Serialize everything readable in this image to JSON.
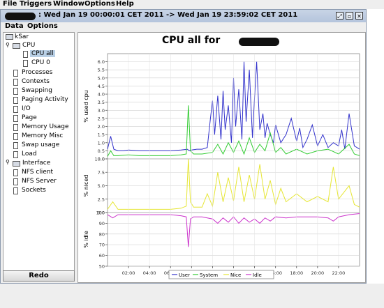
{
  "menubar": [
    "File",
    "Triggers",
    "Window",
    "Options",
    "Help"
  ],
  "window": {
    "title": ": Wed Jan 19 00:00:01 CET 2011 -> Wed Jan 19 23:59:02 CET 2011"
  },
  "innermenu": [
    "Data",
    "Options"
  ],
  "tree": {
    "root": "kSar",
    "cpu": "CPU",
    "cpu_children": [
      "CPU all",
      "CPU 0"
    ],
    "items_a": [
      "Processes",
      "Contexts",
      "Swapping",
      "Paging Activity",
      "I/O",
      "Page",
      "Memory Usage",
      "Memory Misc",
      "Swap usage",
      "Load"
    ],
    "interface": "Interface",
    "items_b": [
      "NFS client",
      "NFS Server",
      "Sockets"
    ]
  },
  "redo_label": "Redo",
  "chart_data": [
    {
      "type": "line",
      "title": "CPU all for",
      "ylabel": "% used cpu",
      "ylim": [
        0,
        6.5
      ],
      "yticks": [
        "0.0",
        "0.5",
        "1.0",
        "1.5",
        "2.0",
        "2.5",
        "3.0",
        "3.5",
        "4.0",
        "4.5",
        "5.0",
        "5.5",
        "6.0"
      ],
      "xticks": [
        "02:00",
        "04:00",
        "06:00",
        "08:00",
        "10:00",
        "12:00",
        "14:00",
        "16:00",
        "18:00",
        "20:00",
        "22:00"
      ],
      "x_range_hours": [
        0,
        24
      ],
      "series": [
        {
          "name": "User",
          "color": "#3333cc",
          "x": [
            0,
            0.3,
            0.6,
            1,
            1.5,
            2,
            3,
            4,
            5,
            6,
            7,
            7.6,
            7.8,
            8,
            8.5,
            9,
            9.5,
            9.8,
            10,
            10.2,
            10.5,
            10.8,
            11,
            11.2,
            11.5,
            11.8,
            12,
            12.2,
            12.5,
            12.8,
            13,
            13.2,
            13.5,
            13.8,
            14,
            14.2,
            14.5,
            14.8,
            15,
            15.2,
            15.5,
            15.8,
            16,
            16.5,
            17,
            17.5,
            18,
            18.3,
            18.6,
            19,
            19.5,
            20,
            20.5,
            21,
            21.5,
            22,
            22.3,
            22.6,
            23,
            23.5,
            24
          ],
          "y": [
            0.6,
            1.4,
            0.6,
            0.5,
            0.5,
            0.55,
            0.5,
            0.5,
            0.5,
            0.5,
            0.55,
            0.6,
            0.5,
            0.55,
            0.6,
            0.6,
            0.7,
            2.5,
            3.6,
            1.5,
            3.9,
            1.2,
            4.2,
            1.8,
            3.3,
            1.0,
            5.0,
            2.0,
            4.3,
            1.2,
            6.0,
            2.3,
            5.5,
            1.3,
            3.8,
            6.0,
            1.8,
            2.8,
            1.3,
            2.2,
            1.5,
            1.0,
            2.1,
            1.0,
            1.5,
            2.5,
            1.1,
            1.9,
            0.7,
            1.2,
            2.1,
            0.8,
            1.5,
            0.7,
            1.0,
            0.8,
            1.8,
            0.6,
            2.8,
            0.8,
            0.6
          ]
        },
        {
          "name": "System",
          "color": "#33cc33",
          "x": [
            0,
            0.3,
            0.6,
            1,
            2,
            3,
            4,
            5,
            6,
            7,
            7.5,
            7.7,
            7.9,
            8.2,
            9,
            10,
            10.5,
            11,
            11.5,
            12,
            12.5,
            13,
            13.5,
            14,
            14.5,
            15,
            15.5,
            16,
            16.5,
            17,
            18,
            19,
            20,
            21,
            22,
            23,
            23.5,
            24
          ],
          "y": [
            0.15,
            0.5,
            0.2,
            0.2,
            0.25,
            0.2,
            0.2,
            0.2,
            0.2,
            0.25,
            0.3,
            3.3,
            0.5,
            0.3,
            0.3,
            0.4,
            0.9,
            0.3,
            1.0,
            0.4,
            1.1,
            0.3,
            1.3,
            0.4,
            0.9,
            0.5,
            1.6,
            0.4,
            0.7,
            0.3,
            0.6,
            0.3,
            0.5,
            0.6,
            0.3,
            0.9,
            0.3,
            0.2
          ]
        },
        {
          "name": "Nice",
          "color": "#e6e633"
        },
        {
          "name": "Idle",
          "color": "#cc33cc"
        }
      ]
    },
    {
      "type": "line",
      "ylabel": "% niced",
      "ylim": [
        0,
        10
      ],
      "yticks": [
        "0.0",
        "2.5",
        "5.0",
        "7.5",
        "10.0"
      ],
      "series": [
        {
          "name": "Nice",
          "color": "#e6e633",
          "x": [
            0,
            0.5,
            1,
            2,
            3,
            4,
            5,
            6,
            7,
            7.5,
            7.7,
            7.9,
            8.2,
            9,
            9.5,
            10,
            10.5,
            11,
            11.5,
            12,
            12.5,
            13,
            13.5,
            14,
            14.5,
            15,
            15.5,
            16,
            16.5,
            17,
            18,
            19,
            20,
            21,
            21.5,
            22,
            23,
            23.5,
            24
          ],
          "y": [
            0.6,
            2.0,
            0.6,
            0.6,
            0.6,
            0.6,
            0.6,
            0.6,
            0.8,
            1.2,
            10.0,
            2.0,
            1.0,
            1.0,
            3.5,
            1.2,
            7.5,
            2.0,
            6.5,
            2.2,
            8.5,
            2.0,
            7.0,
            2.5,
            9.0,
            2.5,
            6.0,
            1.5,
            4.5,
            2.0,
            3.5,
            2.0,
            3.0,
            2.0,
            8.5,
            2.5,
            5.0,
            1.5,
            1.0
          ]
        }
      ]
    },
    {
      "type": "line",
      "ylabel": "% idle",
      "ylim": [
        50,
        100
      ],
      "yticks": [
        "50",
        "60",
        "70",
        "80",
        "90",
        "100"
      ],
      "series": [
        {
          "name": "Idle",
          "color": "#cc33cc",
          "x": [
            0,
            0.5,
            1,
            2,
            3,
            4,
            5,
            6,
            7,
            7.5,
            7.7,
            7.9,
            8.2,
            9,
            10,
            10.5,
            11,
            11.5,
            12,
            12.5,
            13,
            13.5,
            14,
            14.5,
            15,
            15.5,
            16,
            17,
            18,
            19,
            20,
            21,
            21.5,
            22,
            23,
            24
          ],
          "y": [
            98,
            95,
            98,
            98,
            98,
            98,
            98,
            98,
            97,
            96,
            68,
            94,
            96,
            96,
            94,
            90,
            95,
            91,
            96,
            90,
            95,
            91,
            94,
            90,
            95,
            92,
            96,
            95,
            96,
            96,
            96,
            95,
            92,
            96,
            98,
            99
          ]
        }
      ]
    }
  ],
  "legend": [
    "User",
    "System",
    "Nice",
    "Idle"
  ]
}
